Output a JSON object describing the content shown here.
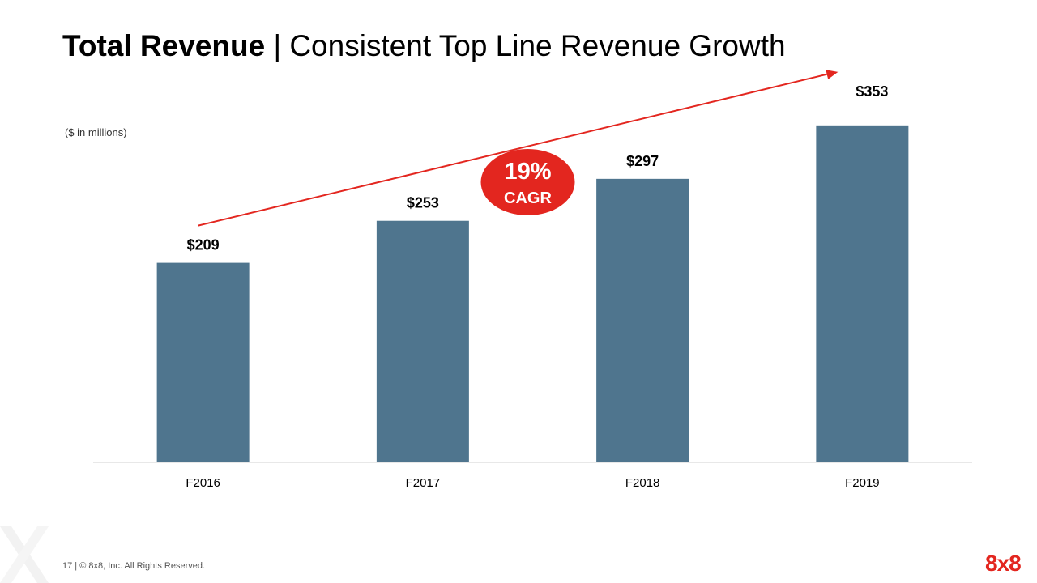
{
  "slide": {
    "title_bold": "Total Revenue",
    "title_rest": "| Consistent Top Line Revenue Growth",
    "units_note": "($ in millions)",
    "footer": "17  |  © 8x8, Inc.  All Rights Reserved.",
    "logo": "8x8"
  },
  "colors": {
    "bar": "#4f758e",
    "accent": "#e3261f",
    "axis": "#d0d0d0"
  },
  "chart_data": {
    "type": "bar",
    "title": "",
    "xlabel": "",
    "ylabel": "",
    "categories": [
      "F2016",
      "F2017",
      "F2018",
      "F2019"
    ],
    "series": [
      {
        "values": [
          209,
          253,
          297,
          353
        ]
      }
    ],
    "value_labels": [
      "$209",
      "$253",
      "$297",
      "$353"
    ],
    "ylim": [
      0,
      380
    ],
    "grid": false,
    "annotation": {
      "line1": "19%",
      "line2": "CAGR",
      "kind": "trend-arrow"
    }
  }
}
